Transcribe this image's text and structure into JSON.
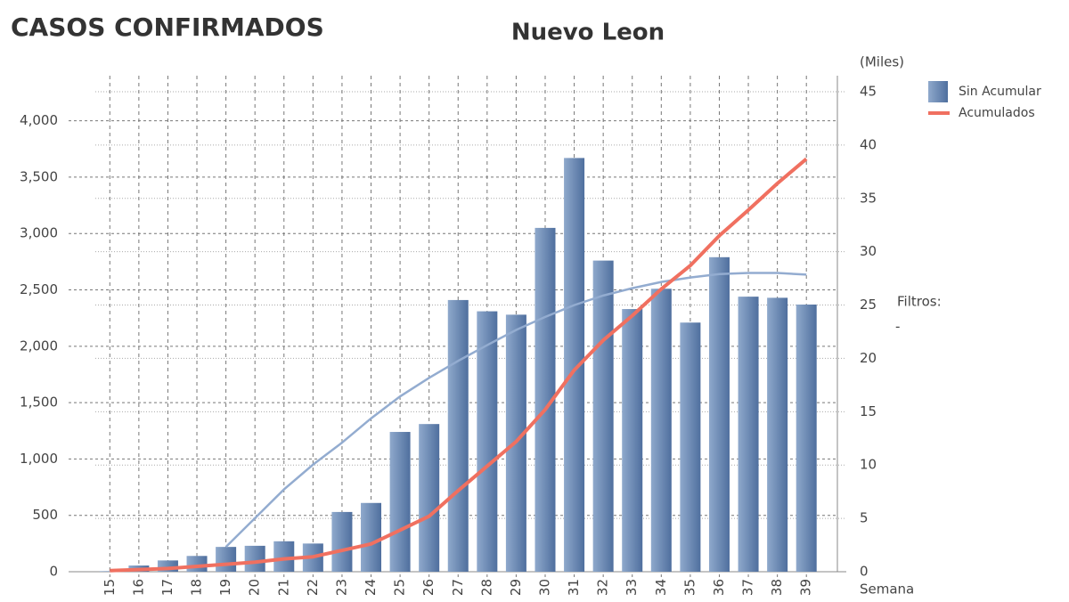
{
  "chart_data": {
    "type": "bar",
    "title": "CASOS CONFIRMADOS",
    "subtitle": "Nuevo Leon",
    "y2_label": "(Miles)",
    "x_label": "Semana",
    "side_label": "Filtros:",
    "side_value": "-",
    "categories": [
      "15",
      "16",
      "17",
      "18",
      "19",
      "20",
      "21",
      "22",
      "23",
      "24",
      "25",
      "26",
      "27",
      "28",
      "29",
      "30",
      "31",
      "32",
      "33",
      "34",
      "35",
      "36",
      "37",
      "38",
      "39"
    ],
    "series": [
      {
        "name": "Sin Acumular",
        "color": "#6a87b3",
        "type": "bar",
        "values": [
          5,
          55,
          100,
          140,
          220,
          230,
          270,
          250,
          530,
          610,
          1240,
          1310,
          2410,
          2310,
          2280,
          3050,
          3670,
          2760,
          2330,
          2510,
          2210,
          2790,
          2440,
          2430,
          2370
        ]
      },
      {
        "name": "Acumulados",
        "color": "#f07060",
        "type": "line",
        "axis": "y2",
        "values": [
          0.1,
          0.2,
          0.3,
          0.5,
          0.7,
          0.9,
          1.2,
          1.4,
          2.0,
          2.6,
          3.9,
          5.2,
          7.6,
          9.9,
          12.2,
          15.2,
          18.9,
          21.7,
          24.0,
          26.5,
          28.7,
          31.5,
          33.9,
          36.4,
          38.7
        ]
      }
    ],
    "trend": {
      "color": "#93acd0",
      "values": [
        null,
        null,
        null,
        null,
        220,
        475,
        730,
        950,
        1145,
        1360,
        1555,
        1720,
        1870,
        2010,
        2145,
        2260,
        2365,
        2450,
        2515,
        2570,
        2610,
        2640,
        2650,
        2650,
        2635
      ]
    },
    "ylim": [
      0,
      4400
    ],
    "yticks": [
      0,
      {
        "value": 500,
        "label": "500"
      },
      {
        "value": 1000,
        "label": "1,000"
      },
      {
        "value": 1500,
        "label": "1,500"
      },
      {
        "value": 2000,
        "label": "2,000"
      },
      {
        "value": 2500,
        "label": "2,500"
      },
      {
        "value": 3000,
        "label": "3,000"
      },
      {
        "value": 3500,
        "label": "3,500"
      },
      {
        "value": 4000,
        "label": "4,000"
      }
    ],
    "y2lim": [
      0,
      46.5
    ],
    "y2ticks": [
      0,
      5,
      10,
      15,
      20,
      25,
      30,
      35,
      40,
      45
    ],
    "grid": true
  }
}
